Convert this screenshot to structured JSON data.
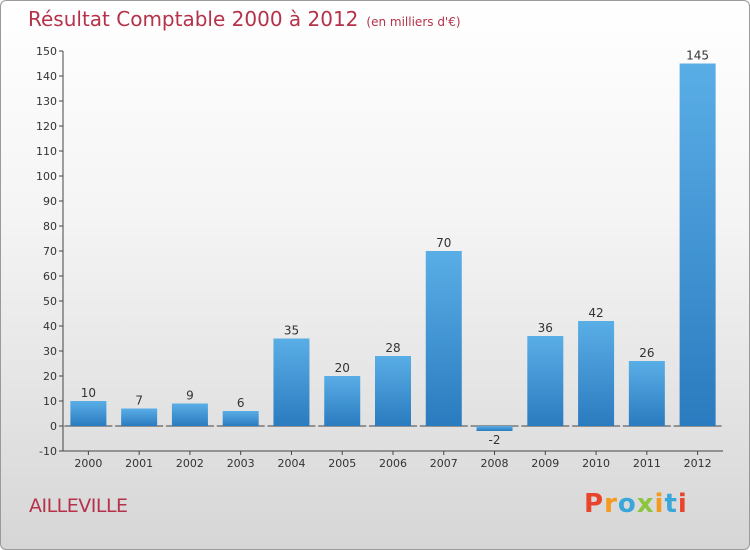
{
  "header": {
    "title": "Résultat Comptable 2000 à 2012",
    "subtitle": "(en milliers d'€)"
  },
  "footer": {
    "commune": "AILLEVILLE",
    "logo": "Proxiti"
  },
  "colors": {
    "title": "#b5324a",
    "bar_light": "#5aaee6",
    "bar_dark": "#2a7bbf",
    "logo_letters": [
      "#e8452c",
      "#f39a1f",
      "#3aa7d8",
      "#8cc63f",
      "#f39a1f",
      "#3aa7d8",
      "#e8452c"
    ]
  },
  "chart_data": {
    "type": "bar",
    "title": "Résultat Comptable 2000 à 2012",
    "subtitle": "(en milliers d'€)",
    "categories": [
      "2000",
      "2001",
      "2002",
      "2003",
      "2004",
      "2005",
      "2006",
      "2007",
      "2008",
      "2009",
      "2010",
      "2011",
      "2012"
    ],
    "values": [
      10,
      7,
      9,
      6,
      35,
      20,
      28,
      70,
      -2,
      36,
      42,
      26,
      145
    ],
    "ylim": [
      -10,
      150
    ],
    "yticks": [
      -10,
      0,
      10,
      20,
      30,
      40,
      50,
      60,
      70,
      80,
      90,
      100,
      110,
      120,
      130,
      140,
      150
    ],
    "xlabel": "",
    "ylabel": "",
    "grid": false,
    "legend": "none"
  }
}
